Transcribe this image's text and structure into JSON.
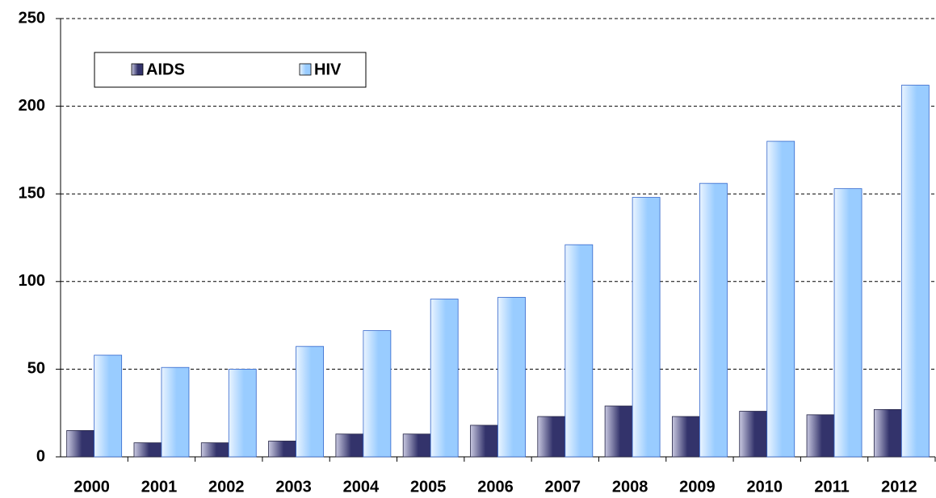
{
  "chart_data": {
    "type": "bar",
    "categories": [
      "2000",
      "2001",
      "2002",
      "2003",
      "2004",
      "2005",
      "2006",
      "2007",
      "2008",
      "2009",
      "2010",
      "2011",
      "2012"
    ],
    "series": [
      {
        "name": "AIDS",
        "color": "#33336b",
        "values": [
          15,
          8,
          8,
          9,
          13,
          13,
          18,
          23,
          29,
          23,
          26,
          24,
          27
        ]
      },
      {
        "name": "HIV",
        "color": "#99ccff",
        "values": [
          58,
          51,
          50,
          63,
          72,
          90,
          91,
          121,
          148,
          156,
          180,
          153,
          212
        ]
      }
    ],
    "ylim": [
      0,
      250
    ],
    "yticks": [
      0,
      50,
      100,
      150,
      200,
      250
    ],
    "grid": true,
    "legend": "top-left"
  }
}
